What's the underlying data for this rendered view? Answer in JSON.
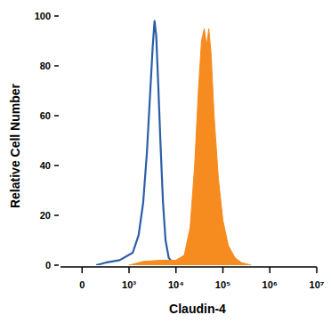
{
  "chart_data": {
    "type": "line",
    "x_label": "Claudin-4",
    "y_label": "Relative Cell Number",
    "log": "x",
    "xlim": [
      -460,
      10000000
    ],
    "xticks": [
      0,
      {
        "value": 1000,
        "label": "10³"
      },
      {
        "value": 10000,
        "label": "10⁴"
      },
      {
        "value": 100000,
        "label": "10⁵"
      },
      {
        "value": 1000000,
        "label": "10⁶"
      },
      {
        "value": 10000000,
        "label": "10⁷"
      }
    ],
    "ylim": [
      0,
      100
    ],
    "yticks": [
      0,
      20,
      40,
      60,
      80,
      100
    ],
    "grid": false,
    "series": [
      {
        "type": "line",
        "color": "#2b5ea7",
        "x": [
          300,
          500,
          800,
          1200,
          1600,
          2000,
          2400,
          2800,
          3200,
          3500,
          3800,
          4200,
          4700,
          5300,
          6000,
          7000,
          8500,
          12000
        ],
        "values": [
          0,
          1,
          2,
          5,
          12,
          25,
          45,
          68,
          88,
          98,
          92,
          72,
          48,
          25,
          10,
          3,
          1,
          0
        ]
      },
      {
        "type": "area",
        "color": "#f68b1f",
        "x": [
          1000,
          2000,
          5000,
          10000,
          15000,
          20000,
          25000,
          30000,
          35000,
          40000,
          45000,
          50000,
          56000,
          65000,
          80000,
          100000,
          130000,
          180000,
          250000,
          400000
        ],
        "values": [
          0,
          1.5,
          2,
          2,
          4,
          15,
          40,
          70,
          90,
          95,
          88,
          95,
          85,
          60,
          35,
          18,
          8,
          3,
          1,
          0
        ]
      }
    ]
  }
}
